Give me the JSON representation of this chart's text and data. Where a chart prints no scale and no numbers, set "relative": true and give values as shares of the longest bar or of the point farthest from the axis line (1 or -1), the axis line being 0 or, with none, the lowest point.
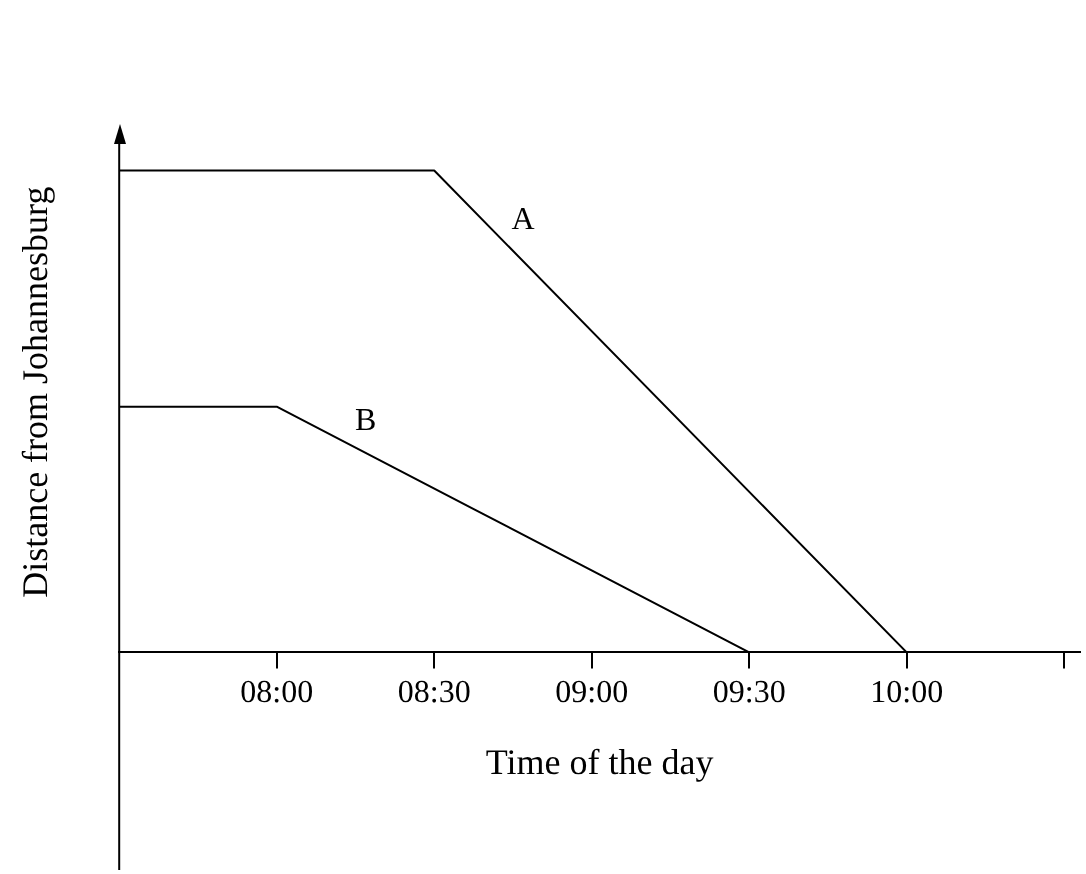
{
  "chart_data": {
    "type": "line",
    "relative": true,
    "xlabel": "Time of the day",
    "ylabel": "Distance from Johannesburg",
    "xlim": [
      7.5,
      10.55
    ],
    "xticks": [
      {
        "value": 8,
        "label": "08:00"
      },
      {
        "value": 8.5,
        "label": "08:30"
      },
      {
        "value": 9,
        "label": "09:00"
      },
      {
        "value": 9.5,
        "label": "09:30"
      },
      {
        "value": 10,
        "label": "10:00"
      },
      {
        "value": 10.5,
        "label": null
      }
    ],
    "series": [
      {
        "name": "A",
        "color": "#000000",
        "x": [
          7.5,
          8.5,
          10
        ],
        "values": [
          1,
          1,
          0
        ]
      },
      {
        "name": "B",
        "color": "#000000",
        "x": [
          7.5,
          8,
          9.5
        ],
        "values": [
          0.51,
          0.51,
          0
        ]
      }
    ],
    "marker": "none",
    "line_style": "solid",
    "grid": false,
    "legend": false
  }
}
